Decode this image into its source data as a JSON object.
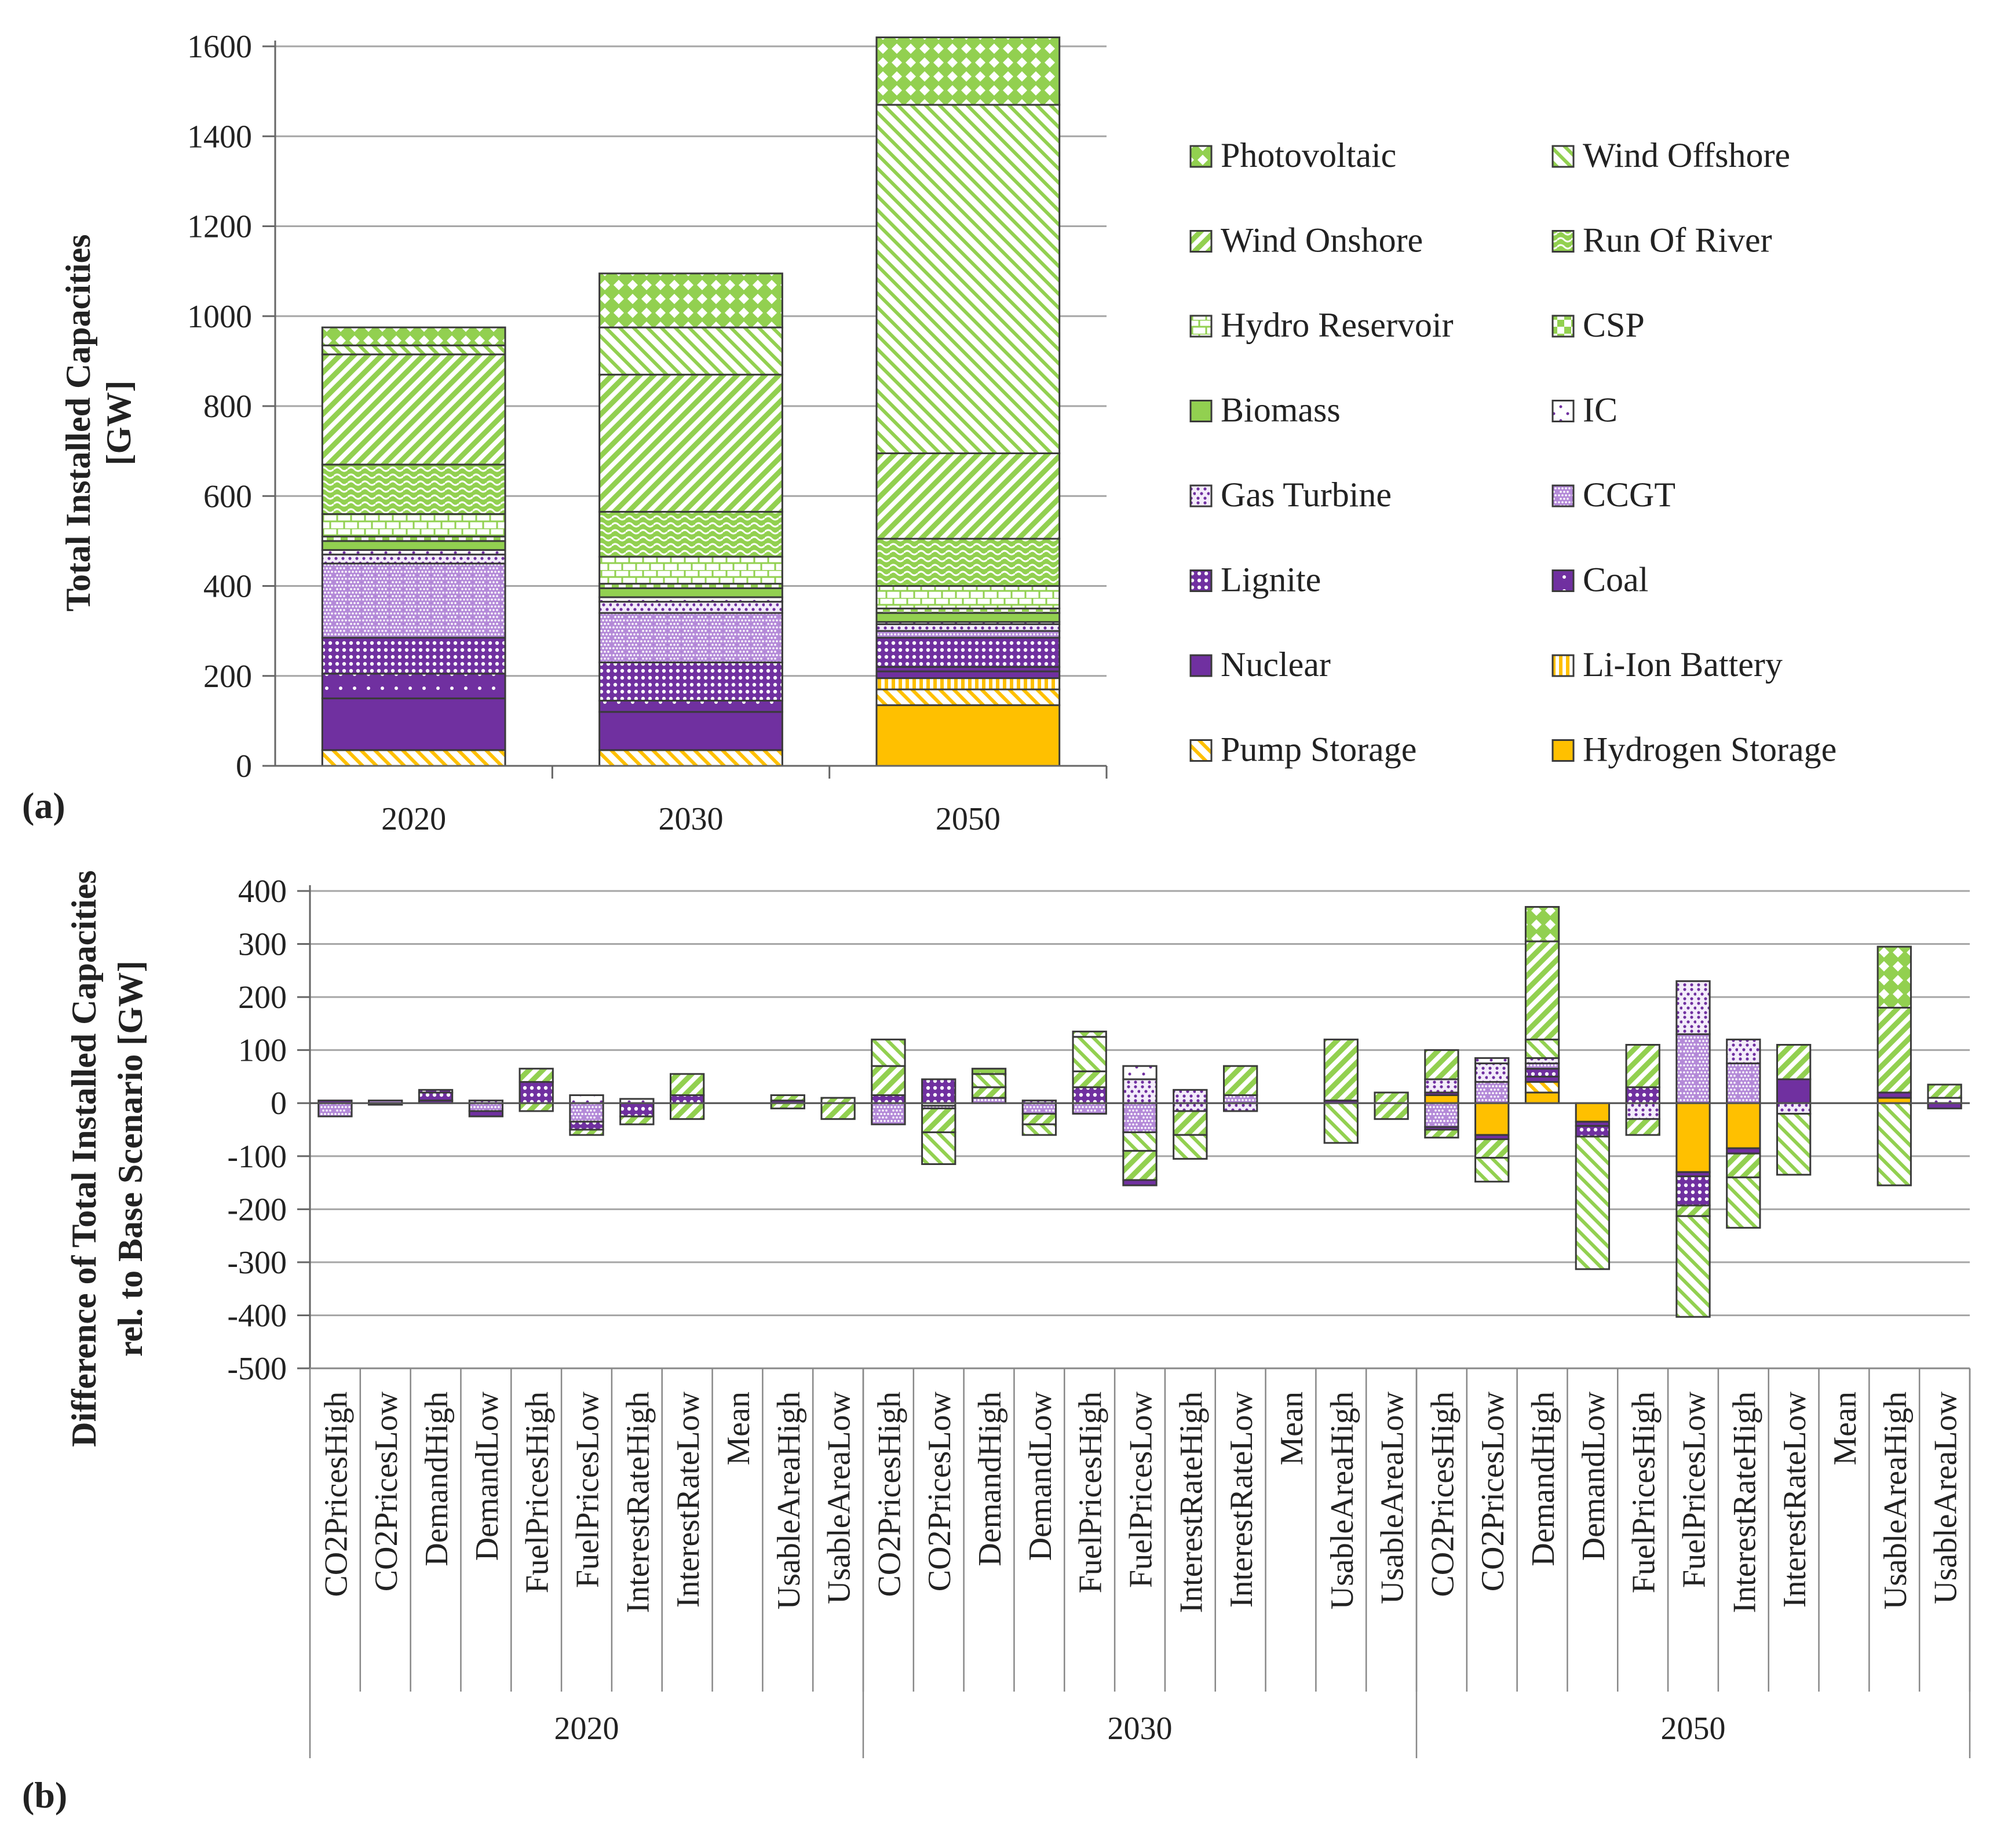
{
  "figure": {
    "label_a": "(a)",
    "label_b": "(b)"
  },
  "colors": {
    "green": "#92d050",
    "light_green": "#c5e69c",
    "purple": "#7030a0",
    "light_purple": "#b48ad8",
    "orange": "#ffc000",
    "grid": "#a6a6a6",
    "edge": "#3a3a3a"
  },
  "series": [
    {
      "key": "PV",
      "name": "Photovoltaic",
      "color": "#92d050",
      "pattern": "diamonds"
    },
    {
      "key": "WOff",
      "name": "Wind Offshore",
      "color": "#92d050",
      "pattern": "diag-down-thin"
    },
    {
      "key": "WOn",
      "name": "Wind Onshore",
      "color": "#92d050",
      "pattern": "diag-up"
    },
    {
      "key": "RoR",
      "name": "Run Of River",
      "color": "#92d050",
      "pattern": "waves"
    },
    {
      "key": "Hydro",
      "name": "Hydro Reservoir",
      "color": "#92d050",
      "pattern": "bricks"
    },
    {
      "key": "CSP",
      "name": "CSP",
      "color": "#92d050",
      "pattern": "checker"
    },
    {
      "key": "Bio",
      "name": "Biomass",
      "color": "#92d050",
      "pattern": "solid"
    },
    {
      "key": "IC",
      "name": "IC",
      "color": "#7030a0",
      "pattern": "sparse-dots"
    },
    {
      "key": "GT",
      "name": "Gas Turbine",
      "color": "#7030a0",
      "pattern": "dots"
    },
    {
      "key": "CCGT",
      "name": "CCGT",
      "color": "#7030a0",
      "pattern": "dense-dots"
    },
    {
      "key": "Lig",
      "name": "Lignite",
      "color": "#7030a0",
      "pattern": "grid-dots"
    },
    {
      "key": "Coal",
      "name": "Coal",
      "color": "#7030a0",
      "pattern": "dark-dots"
    },
    {
      "key": "Nuc",
      "name": "Nuclear",
      "color": "#7030a0",
      "pattern": "solid"
    },
    {
      "key": "LiIon",
      "name": "Li-Ion Battery",
      "color": "#ffc000",
      "pattern": "vertical"
    },
    {
      "key": "Pump",
      "name": "Pump Storage",
      "color": "#ffc000",
      "pattern": "diag-down-thin"
    },
    {
      "key": "H2",
      "name": "Hydrogen Storage",
      "color": "#ffc000",
      "pattern": "solid"
    }
  ],
  "chart_data": [
    {
      "type": "bar",
      "stacked": true,
      "title": "",
      "ylabel_line1": "Total Installed Capacities",
      "ylabel_line2": "[GW]",
      "xlabel": "",
      "ylim": [
        0,
        1600
      ],
      "yticks": [
        0,
        200,
        400,
        600,
        800,
        1000,
        1200,
        1400,
        1600
      ],
      "categories": [
        "2020",
        "2030",
        "2050"
      ],
      "legend_position": "right",
      "stack_order": [
        "H2",
        "Pump",
        "LiIon",
        "Nuc",
        "Coal",
        "Lig",
        "CCGT",
        "GT",
        "IC",
        "Bio",
        "CSP",
        "Hydro",
        "RoR",
        "WOn",
        "WOff",
        "PV"
      ],
      "values": {
        "2020": {
          "H2": 0,
          "Pump": 35,
          "LiIon": 0,
          "Nuc": 115,
          "Coal": 55,
          "Lig": 80,
          "CCGT": 165,
          "GT": 20,
          "IC": 10,
          "Bio": 20,
          "CSP": 10,
          "Hydro": 50,
          "RoR": 110,
          "WOn": 245,
          "WOff": 20,
          "PV": 40
        },
        "2030": {
          "H2": 0,
          "Pump": 35,
          "LiIon": 0,
          "Nuc": 85,
          "Coal": 25,
          "Lig": 85,
          "CCGT": 110,
          "GT": 25,
          "IC": 10,
          "Bio": 20,
          "CSP": 10,
          "Hydro": 60,
          "RoR": 100,
          "WOn": 305,
          "WOff": 105,
          "PV": 120
        },
        "2050": {
          "H2": 135,
          "Pump": 35,
          "LiIon": 25,
          "Nuc": 15,
          "Coal": 10,
          "Lig": 65,
          "CCGT": 15,
          "GT": 15,
          "IC": 5,
          "Bio": 20,
          "CSP": 10,
          "Hydro": 50,
          "RoR": 105,
          "WOn": 190,
          "WOff": 775,
          "PV": 150
        }
      }
    },
    {
      "type": "bar",
      "stacked": true,
      "title": "",
      "ylabel_line1": "Difference of  Total Installed Capacities",
      "ylabel_line2": "rel. to Base Scenario [GW]",
      "xlabel": "",
      "ylim": [
        -500,
        400
      ],
      "yticks": [
        -500,
        -400,
        -300,
        -200,
        -100,
        0,
        100,
        200,
        300,
        400
      ],
      "groups": [
        {
          "name": "2020",
          "scenarios": [
            "CO2PricesHigh",
            "CO2PricesLow",
            "DemandHigh",
            "DemandLow",
            "FuelPricesHigh",
            "FuelPricesLow",
            "InterestRateHigh",
            "InterestRateLow",
            "Mean",
            "UsableAreaHigh",
            "UsableAreaLow"
          ]
        },
        {
          "name": "2030",
          "scenarios": [
            "CO2PricesHigh",
            "CO2PricesLow",
            "DemandHigh",
            "DemandLow",
            "FuelPricesHigh",
            "FuelPricesLow",
            "InterestRateHigh",
            "InterestRateLow",
            "Mean",
            "UsableAreaHigh",
            "UsableAreaLow"
          ]
        },
        {
          "name": "2050",
          "scenarios": [
            "CO2PricesHigh",
            "CO2PricesLow",
            "DemandHigh",
            "DemandLow",
            "FuelPricesHigh",
            "FuelPricesLow",
            "InterestRateHigh",
            "InterestRateLow",
            "Mean",
            "UsableAreaHigh",
            "UsableAreaLow"
          ]
        }
      ],
      "bars": [
        [
          [
            [
              "Coal",
              5
            ]
          ],
          [
            [
              "CCGT",
              -25
            ]
          ]
        ],
        [
          [
            [
              "CCGT",
              5
            ]
          ],
          [
            [
              "Coal",
              -3
            ]
          ]
        ],
        [
          [
            [
              "Nuc",
              5
            ],
            [
              "Lig",
              15
            ],
            [
              "Coal",
              5
            ]
          ],
          []
        ],
        [
          [
            [
              "GT",
              5
            ]
          ],
          [
            [
              "CCGT",
              -15
            ],
            [
              "Nuc",
              -10
            ]
          ]
        ],
        [
          [
            [
              "Lig",
              40
            ],
            [
              "WOn",
              25
            ]
          ],
          [
            [
              "WOn",
              -15
            ]
          ]
        ],
        [
          [
            [
              "IC",
              15
            ]
          ],
          [
            [
              "CCGT",
              -35
            ],
            [
              "Lig",
              -15
            ],
            [
              "WOn",
              -10
            ]
          ]
        ],
        [
          [
            [
              "IC",
              8
            ]
          ],
          [
            [
              "Lig",
              -25
            ],
            [
              "WOn",
              -15
            ]
          ]
        ],
        [
          [
            [
              "Lig",
              15
            ],
            [
              "WOn",
              40
            ]
          ],
          [
            [
              "WOn",
              -30
            ]
          ]
        ],
        [
          [],
          []
        ],
        [
          [
            [
              "Coal",
              5
            ],
            [
              "WOn",
              10
            ]
          ],
          [
            [
              "WOn",
              -10
            ]
          ]
        ],
        [
          [
            [
              "WOn",
              10
            ]
          ],
          [
            [
              "WOn",
              -30
            ]
          ]
        ],
        [
          [
            [
              "Lig",
              15
            ],
            [
              "WOn",
              55
            ],
            [
              "WOff",
              50
            ]
          ],
          [
            [
              "CCGT",
              -40
            ]
          ]
        ],
        [
          [
            [
              "Lig",
              45
            ]
          ],
          [
            [
              "IC",
              -5
            ],
            [
              "CCGT",
              -5
            ],
            [
              "WOn",
              -45
            ],
            [
              "WOff",
              -60
            ]
          ]
        ],
        [
          [
            [
              "CCGT",
              10
            ],
            [
              "WOn",
              20
            ],
            [
              "WOff",
              25
            ],
            [
              "PV",
              10
            ]
          ],
          []
        ],
        [
          [
            [
              "GT",
              5
            ]
          ],
          [
            [
              "CCGT",
              -20
            ],
            [
              "WOn",
              -20
            ],
            [
              "WOff",
              -20
            ]
          ]
        ],
        [
          [
            [
              "Lig",
              30
            ],
            [
              "WOn",
              30
            ],
            [
              "WOff",
              65
            ],
            [
              "PV",
              10
            ]
          ],
          [
            [
              "CCGT",
              -20
            ]
          ]
        ],
        [
          [
            [
              "GT",
              45
            ],
            [
              "IC",
              25
            ]
          ],
          [
            [
              "CCGT",
              -55
            ],
            [
              "WOff",
              -35
            ],
            [
              "WOn",
              -55
            ],
            [
              "Nuc",
              -10
            ]
          ]
        ],
        [
          [
            [
              "GT",
              25
            ]
          ],
          [
            [
              "GT",
              -15
            ],
            [
              "WOn",
              -45
            ],
            [
              "WOff",
              -45
            ]
          ]
        ],
        [
          [
            [
              "CCGT",
              15
            ],
            [
              "WOn",
              55
            ]
          ],
          [
            [
              "GT",
              -15
            ]
          ]
        ],
        [
          [],
          []
        ],
        [
          [
            [
              "Nuc",
              5
            ],
            [
              "WOn",
              115
            ]
          ],
          [
            [
              "WOff",
              -75
            ]
          ]
        ],
        [
          [
            [
              "WOn",
              20
            ]
          ],
          [
            [
              "WOn",
              -30
            ]
          ]
        ],
        [
          [
            [
              "H2",
              15
            ],
            [
              "Nuc",
              5
            ],
            [
              "GT",
              25
            ],
            [
              "WOn",
              55
            ]
          ],
          [
            [
              "CCGT",
              -45
            ],
            [
              "Nuc",
              -5
            ],
            [
              "WOn",
              -15
            ]
          ]
        ],
        [
          [
            [
              "CCGT",
              40
            ],
            [
              "GT",
              35
            ],
            [
              "IC",
              10
            ]
          ],
          [
            [
              "H2",
              -60
            ],
            [
              "Nuc",
              -8
            ],
            [
              "WOn",
              -35
            ],
            [
              "WOff",
              -45
            ]
          ]
        ],
        [
          [
            [
              "H2",
              20
            ],
            [
              "Pump",
              20
            ],
            [
              "Nuc",
              10
            ],
            [
              "Lig",
              15
            ],
            [
              "CCGT",
              10
            ],
            [
              "GT",
              10
            ],
            [
              "WOff",
              35
            ],
            [
              "WOn",
              185
            ],
            [
              "PV",
              65
            ]
          ],
          []
        ],
        [
          [],
          [
            [
              "H2",
              -35
            ],
            [
              "Nuc",
              -8
            ],
            [
              "Lig",
              -20
            ],
            [
              "WOff",
              -250
            ]
          ]
        ],
        [
          [
            [
              "Lig",
              30
            ],
            [
              "WOn",
              80
            ]
          ],
          [
            [
              "GT",
              -30
            ],
            [
              "WOn",
              -30
            ]
          ]
        ],
        [
          [
            [
              "CCGT",
              130
            ],
            [
              "GT",
              100
            ]
          ],
          [
            [
              "H2",
              -130
            ],
            [
              "Nuc",
              -8
            ],
            [
              "Lig",
              -55
            ],
            [
              "WOn",
              -20
            ],
            [
              "WOff",
              -190
            ]
          ]
        ],
        [
          [
            [
              "CCGT",
              75
            ],
            [
              "GT",
              45
            ]
          ],
          [
            [
              "H2",
              -85
            ],
            [
              "Nuc",
              -10
            ],
            [
              "WOn",
              -45
            ],
            [
              "WOff",
              -95
            ]
          ]
        ],
        [
          [
            [
              "Nuc",
              45
            ],
            [
              "WOn",
              65
            ]
          ],
          [
            [
              "GT",
              -20
            ],
            [
              "WOff",
              -115
            ]
          ]
        ],
        [
          [],
          []
        ],
        [
          [
            [
              "H2",
              10
            ],
            [
              "Nuc",
              10
            ],
            [
              "WOn",
              160
            ],
            [
              "PV",
              115
            ]
          ],
          [
            [
              "WOff",
              -155
            ]
          ]
        ],
        [
          [
            [
              "IC",
              10
            ],
            [
              "WOn",
              25
            ]
          ],
          [
            [
              "Nuc",
              -10
            ]
          ]
        ]
      ]
    }
  ]
}
